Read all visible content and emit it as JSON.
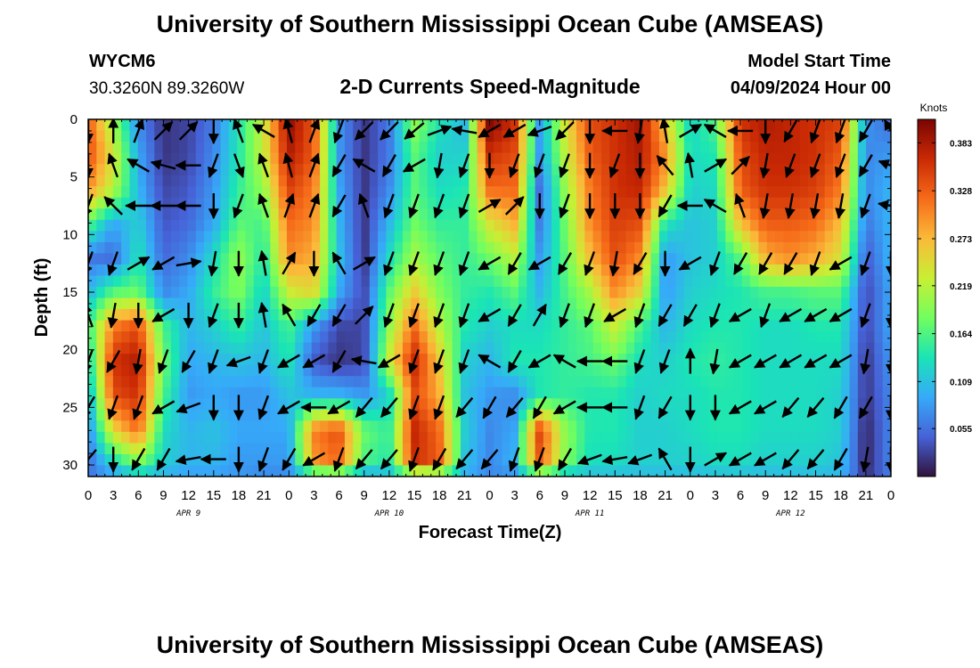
{
  "page": {
    "title": "University of Southern Mississippi Ocean Cube (AMSEAS)",
    "footer_title": "University of Southern Mississippi Ocean Cube (AMSEAS)",
    "station": "WYCM6",
    "coords": "30.3260N  89.3260W",
    "subtitle": "2-D Currents Speed-Magnitude",
    "model_start_label": "Model Start Time",
    "model_start_value": "04/09/2024 Hour 00"
  },
  "colors": {
    "ramp": [
      "#30123b",
      "#4662d7",
      "#36aaf9",
      "#1ae4b6",
      "#72fe5e",
      "#c8ef34",
      "#faba39",
      "#f66b19",
      "#ca2a04",
      "#7a0403"
    ]
  },
  "chart_data": {
    "type": "heatmap",
    "title": "2-D Currents Speed-Magnitude",
    "xlabel": "Forecast Time(Z)",
    "ylabel": "Depth (ft)",
    "x_unit": "hours since 04/09/2024 00Z",
    "x_range": [
      0,
      96
    ],
    "x_ticks": [
      0,
      3,
      6,
      9,
      12,
      15,
      18,
      21,
      24,
      27,
      30,
      33,
      36,
      39,
      42,
      45,
      48,
      51,
      54,
      57,
      60,
      63,
      66,
      69,
      72,
      75,
      78,
      81,
      84,
      87,
      90,
      93,
      96
    ],
    "x_tick_labels": [
      "0",
      "3",
      "6",
      "9",
      "12",
      "15",
      "18",
      "21",
      "0",
      "3",
      "6",
      "9",
      "12",
      "15",
      "18",
      "21",
      "0",
      "3",
      "6",
      "9",
      "12",
      "15",
      "18",
      "21",
      "0",
      "3",
      "6",
      "9",
      "12",
      "15",
      "18",
      "21",
      "0"
    ],
    "day_labels": [
      {
        "label": "APR 9",
        "hour": 12
      },
      {
        "label": "APR 10",
        "hour": 36
      },
      {
        "label": "APR 11",
        "hour": 60
      },
      {
        "label": "APR 12",
        "hour": 84
      }
    ],
    "y_range": [
      0,
      31
    ],
    "y_ticks": [
      0,
      5,
      10,
      15,
      20,
      25,
      30
    ],
    "y_inverted": true,
    "colorbar": {
      "unit": "Knots",
      "range": [
        0,
        0.41
      ],
      "tick_values": [
        0.383,
        0.328,
        0.273,
        0.219,
        0.164,
        0.109,
        0.055
      ],
      "tick_labels": [
        "0.383",
        "0.328",
        "0.273",
        "0.219",
        "0.164",
        "0.109",
        "0.055"
      ]
    },
    "time_hours": [
      0,
      3,
      6,
      9,
      12,
      15,
      18,
      21,
      24,
      27,
      30,
      33,
      36,
      39,
      42,
      45,
      48,
      51,
      54,
      57,
      60,
      63,
      66,
      69,
      72,
      75,
      78,
      81,
      84,
      87,
      90,
      93,
      96
    ],
    "depth_ft": [
      0,
      3,
      6,
      9,
      12,
      15,
      18,
      21,
      24,
      27,
      30,
      31
    ],
    "speed_knots": [
      [
        0.33,
        0.2,
        0.07,
        0.02,
        0.03,
        0.06,
        0.14,
        0.23,
        0.4,
        0.33,
        0.08,
        0.02,
        0.06,
        0.2,
        0.14,
        0.1,
        0.41,
        0.36,
        0.08,
        0.24,
        0.34,
        0.36,
        0.39,
        0.26,
        0.12,
        0.17,
        0.36,
        0.38,
        0.37,
        0.36,
        0.35,
        0.08,
        0.05
      ],
      [
        0.34,
        0.24,
        0.09,
        0.02,
        0.03,
        0.07,
        0.14,
        0.23,
        0.38,
        0.33,
        0.08,
        0.02,
        0.06,
        0.17,
        0.12,
        0.12,
        0.36,
        0.34,
        0.08,
        0.22,
        0.33,
        0.36,
        0.38,
        0.3,
        0.13,
        0.14,
        0.34,
        0.37,
        0.37,
        0.36,
        0.33,
        0.07,
        0.08
      ],
      [
        0.3,
        0.22,
        0.1,
        0.03,
        0.04,
        0.08,
        0.15,
        0.2,
        0.35,
        0.31,
        0.09,
        0.02,
        0.07,
        0.17,
        0.13,
        0.14,
        0.32,
        0.32,
        0.05,
        0.2,
        0.31,
        0.36,
        0.37,
        0.27,
        0.12,
        0.13,
        0.33,
        0.36,
        0.36,
        0.35,
        0.31,
        0.07,
        0.1
      ],
      [
        0.17,
        0.09,
        0.12,
        0.04,
        0.05,
        0.09,
        0.17,
        0.16,
        0.32,
        0.3,
        0.1,
        0.02,
        0.1,
        0.18,
        0.15,
        0.15,
        0.24,
        0.28,
        0.06,
        0.18,
        0.3,
        0.35,
        0.34,
        0.14,
        0.11,
        0.12,
        0.27,
        0.33,
        0.33,
        0.32,
        0.27,
        0.06,
        0.1
      ],
      [
        0.06,
        0.05,
        0.14,
        0.05,
        0.07,
        0.13,
        0.2,
        0.14,
        0.3,
        0.28,
        0.11,
        0.02,
        0.13,
        0.21,
        0.17,
        0.15,
        0.18,
        0.22,
        0.08,
        0.17,
        0.27,
        0.34,
        0.3,
        0.08,
        0.11,
        0.12,
        0.17,
        0.28,
        0.3,
        0.28,
        0.24,
        0.04,
        0.1
      ],
      [
        0.1,
        0.17,
        0.18,
        0.07,
        0.09,
        0.15,
        0.19,
        0.12,
        0.23,
        0.25,
        0.09,
        0.03,
        0.17,
        0.26,
        0.19,
        0.15,
        0.14,
        0.17,
        0.1,
        0.16,
        0.21,
        0.3,
        0.25,
        0.08,
        0.12,
        0.13,
        0.14,
        0.16,
        0.16,
        0.17,
        0.17,
        0.03,
        0.09
      ],
      [
        0.15,
        0.31,
        0.34,
        0.16,
        0.1,
        0.12,
        0.15,
        0.11,
        0.16,
        0.08,
        0.03,
        0.03,
        0.2,
        0.32,
        0.22,
        0.14,
        0.12,
        0.13,
        0.13,
        0.15,
        0.17,
        0.23,
        0.16,
        0.1,
        0.13,
        0.14,
        0.14,
        0.13,
        0.13,
        0.14,
        0.14,
        0.03,
        0.09
      ],
      [
        0.12,
        0.36,
        0.38,
        0.18,
        0.09,
        0.1,
        0.11,
        0.1,
        0.14,
        0.04,
        0.02,
        0.03,
        0.23,
        0.37,
        0.26,
        0.12,
        0.1,
        0.14,
        0.14,
        0.15,
        0.16,
        0.18,
        0.13,
        0.12,
        0.14,
        0.15,
        0.14,
        0.13,
        0.13,
        0.13,
        0.13,
        0.02,
        0.08
      ],
      [
        0.09,
        0.34,
        0.36,
        0.16,
        0.08,
        0.09,
        0.08,
        0.08,
        0.11,
        0.1,
        0.1,
        0.08,
        0.12,
        0.34,
        0.28,
        0.11,
        0.08,
        0.07,
        0.14,
        0.15,
        0.14,
        0.14,
        0.12,
        0.13,
        0.13,
        0.14,
        0.14,
        0.13,
        0.13,
        0.13,
        0.12,
        0.02,
        0.07
      ],
      [
        0.07,
        0.25,
        0.32,
        0.13,
        0.1,
        0.11,
        0.09,
        0.09,
        0.09,
        0.31,
        0.34,
        0.18,
        0.15,
        0.37,
        0.32,
        0.12,
        0.07,
        0.09,
        0.35,
        0.2,
        0.14,
        0.14,
        0.12,
        0.12,
        0.13,
        0.14,
        0.14,
        0.13,
        0.13,
        0.13,
        0.12,
        0.01,
        0.07
      ],
      [
        0.05,
        0.12,
        0.18,
        0.12,
        0.1,
        0.1,
        0.08,
        0.08,
        0.08,
        0.29,
        0.32,
        0.16,
        0.14,
        0.36,
        0.33,
        0.11,
        0.07,
        0.1,
        0.33,
        0.19,
        0.13,
        0.13,
        0.12,
        0.12,
        0.12,
        0.13,
        0.13,
        0.12,
        0.12,
        0.12,
        0.11,
        0.01,
        0.07
      ],
      [
        0.06,
        0.08,
        0.1,
        0.09,
        0.08,
        0.08,
        0.08,
        0.07,
        0.07,
        0.08,
        0.08,
        0.07,
        0.09,
        0.1,
        0.1,
        0.09,
        0.07,
        0.07,
        0.09,
        0.09,
        0.1,
        0.1,
        0.1,
        0.1,
        0.1,
        0.1,
        0.1,
        0.1,
        0.1,
        0.1,
        0.1,
        0.02,
        0.06
      ]
    ],
    "vector_depths_ft": [
      1,
      4,
      7.5,
      12.5,
      17,
      21,
      25,
      29.5
    ],
    "vector_direction_deg": [
      [
        180,
        0,
        20,
        45,
        45,
        180,
        340,
        300,
        345,
        20,
        200,
        225,
        225,
        230,
        70,
        280,
        240,
        240,
        250,
        225,
        180,
        270,
        190,
        350,
        60,
        300,
        270,
        180,
        210,
        200,
        200,
        210,
        330
      ],
      [
        180,
        340,
        300,
        285,
        270,
        200,
        160,
        340,
        345,
        20,
        210,
        300,
        210,
        240,
        190,
        200,
        180,
        200,
        200,
        200,
        180,
        200,
        180,
        320,
        350,
        60,
        45,
        190,
        200,
        200,
        200,
        210,
        290
      ],
      [
        200,
        315,
        270,
        270,
        270,
        180,
        200,
        340,
        20,
        20,
        210,
        340,
        200,
        200,
        200,
        200,
        60,
        45,
        180,
        200,
        180,
        180,
        180,
        210,
        270,
        300,
        340,
        190,
        190,
        190,
        190,
        200,
        280
      ],
      [
        200,
        200,
        60,
        240,
        80,
        190,
        180,
        350,
        30,
        180,
        330,
        60,
        200,
        200,
        200,
        200,
        240,
        210,
        240,
        210,
        200,
        190,
        210,
        180,
        240,
        200,
        210,
        210,
        210,
        200,
        240,
        200,
        180
      ],
      [
        340,
        190,
        180,
        240,
        180,
        200,
        180,
        350,
        330,
        210,
        210,
        45,
        200,
        200,
        200,
        200,
        240,
        210,
        30,
        200,
        200,
        240,
        200,
        210,
        210,
        200,
        240,
        200,
        240,
        240,
        240,
        200,
        180
      ],
      [
        200,
        210,
        190,
        200,
        210,
        200,
        250,
        200,
        240,
        240,
        210,
        280,
        240,
        200,
        200,
        200,
        300,
        210,
        240,
        300,
        270,
        270,
        200,
        200,
        0,
        190,
        240,
        240,
        240,
        240,
        240,
        190,
        180
      ],
      [
        210,
        200,
        200,
        240,
        250,
        180,
        180,
        200,
        240,
        270,
        240,
        220,
        220,
        200,
        200,
        220,
        210,
        220,
        210,
        240,
        270,
        270,
        200,
        210,
        180,
        180,
        240,
        240,
        220,
        220,
        210,
        210,
        180
      ],
      [
        220,
        180,
        210,
        210,
        260,
        270,
        180,
        200,
        210,
        240,
        200,
        220,
        220,
        200,
        210,
        220,
        220,
        200,
        200,
        210,
        250,
        260,
        250,
        330,
        180,
        60,
        240,
        240,
        220,
        220,
        210,
        190,
        180
      ]
    ]
  }
}
